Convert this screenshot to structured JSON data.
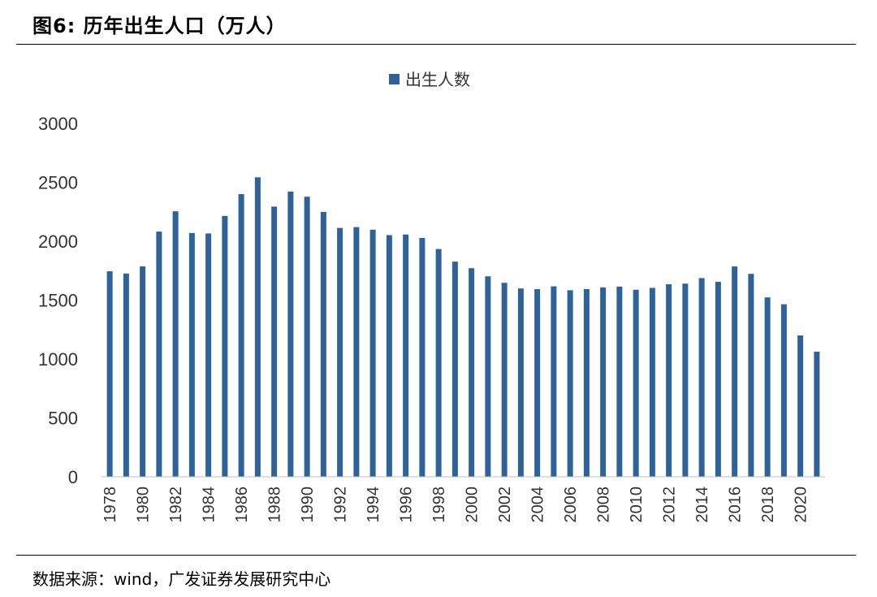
{
  "figure": {
    "title": "图6:  历年出生人口（万人）",
    "source": "数据来源：wind，广发证券发展研究中心"
  },
  "chart_data": {
    "type": "bar",
    "title": "历年出生人口（万人）",
    "xlabel": "",
    "ylabel": "",
    "ylim": [
      0,
      3000
    ],
    "yticks": [
      0,
      500,
      1000,
      1500,
      2000,
      2500,
      3000
    ],
    "color": "#2E6299",
    "legend_position": "top-center",
    "categories": [
      "1978",
      "1979",
      "1980",
      "1981",
      "1982",
      "1983",
      "1984",
      "1985",
      "1986",
      "1987",
      "1988",
      "1989",
      "1990",
      "1991",
      "1992",
      "1993",
      "1994",
      "1995",
      "1996",
      "1997",
      "1998",
      "1999",
      "2000",
      "2001",
      "2002",
      "2003",
      "2004",
      "2005",
      "2006",
      "2007",
      "2008",
      "2009",
      "2010",
      "2011",
      "2012",
      "2013",
      "2014",
      "2015",
      "2016",
      "2017",
      "2018",
      "2019",
      "2020",
      "2021"
    ],
    "xtick_labels": [
      "1978",
      "1980",
      "1982",
      "1984",
      "1986",
      "1988",
      "1990",
      "1992",
      "1994",
      "1996",
      "1998",
      "2000",
      "2002",
      "2004",
      "2006",
      "2008",
      "2010",
      "2012",
      "2014",
      "2016",
      "2018",
      "2020"
    ],
    "series": [
      {
        "name": "出生人数",
        "values": [
          1745,
          1726,
          1787,
          2082,
          2254,
          2070,
          2066,
          2215,
          2400,
          2543,
          2294,
          2422,
          2378,
          2249,
          2113,
          2120,
          2098,
          2052,
          2057,
          2028,
          1934,
          1827,
          1771,
          1702,
          1647,
          1599,
          1593,
          1617,
          1584,
          1594,
          1608,
          1615,
          1588,
          1604,
          1635,
          1640,
          1687,
          1655,
          1786,
          1723,
          1523,
          1465,
          1200,
          1062
        ]
      }
    ]
  }
}
